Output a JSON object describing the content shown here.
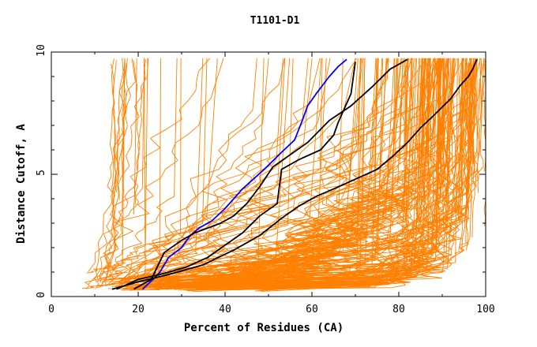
{
  "chart_data": {
    "type": "line",
    "title": "T1101-D1",
    "xlabel": "Percent of Residues (CA)",
    "ylabel": "Distance Cutoff, A",
    "xlim": [
      0,
      100
    ],
    "ylim": [
      0,
      10
    ],
    "x_ticks": [
      0,
      20,
      40,
      60,
      80,
      100
    ],
    "y_ticks": [
      0,
      5,
      10
    ],
    "x_tick_labels": [
      "0",
      "20",
      "40",
      "60",
      "80",
      "100"
    ],
    "y_tick_labels": [
      "0",
      "5",
      "10"
    ],
    "grid": false,
    "colors": {
      "background_models": "#ff8000",
      "highlight_blue": "#0000ff",
      "highlight_black": "#000000"
    },
    "highlight_series": [
      {
        "name": "blue model",
        "color": "#0000ff",
        "x": [
          21,
          24,
          25,
          27,
          30,
          32,
          34,
          37,
          40,
          44,
          49,
          53,
          56,
          58,
          59,
          61,
          64,
          66,
          68
        ],
        "y": [
          0.3,
          0.8,
          1.0,
          1.6,
          2.0,
          2.5,
          2.8,
          3.1,
          3.6,
          4.4,
          5.2,
          5.9,
          6.4,
          7.3,
          7.8,
          8.3,
          9.0,
          9.4,
          9.7
        ]
      },
      {
        "name": "black model 1",
        "color": "#000000",
        "x": [
          19,
          23,
          26,
          30,
          33,
          36,
          39,
          42,
          45,
          48,
          51,
          55,
          59,
          64,
          69,
          74,
          78,
          82
        ],
        "y": [
          0.3,
          0.7,
          1.8,
          2.3,
          2.6,
          2.8,
          3.0,
          3.3,
          3.8,
          4.5,
          5.3,
          5.8,
          6.3,
          7.2,
          7.8,
          8.6,
          9.3,
          9.7
        ]
      },
      {
        "name": "black model 2",
        "color": "#000000",
        "x": [
          15,
          20,
          25,
          31,
          36,
          40,
          44,
          48,
          52,
          53,
          57,
          62,
          65,
          66,
          69,
          70
        ],
        "y": [
          0.3,
          0.7,
          0.9,
          1.2,
          1.6,
          2.1,
          2.6,
          3.3,
          3.8,
          5.2,
          5.6,
          6.0,
          6.6,
          7.1,
          8.3,
          9.6
        ]
      },
      {
        "name": "black model 3",
        "color": "#000000",
        "x": [
          14,
          20,
          27,
          35,
          42,
          48,
          53,
          57,
          61,
          65,
          70,
          75,
          79,
          82,
          85,
          88,
          92,
          94,
          96,
          97,
          98
        ],
        "y": [
          0.3,
          0.6,
          0.9,
          1.3,
          1.9,
          2.5,
          3.2,
          3.7,
          4.1,
          4.4,
          4.8,
          5.2,
          5.8,
          6.3,
          6.9,
          7.4,
          8.1,
          8.6,
          9.0,
          9.3,
          9.7
        ]
      }
    ]
  }
}
